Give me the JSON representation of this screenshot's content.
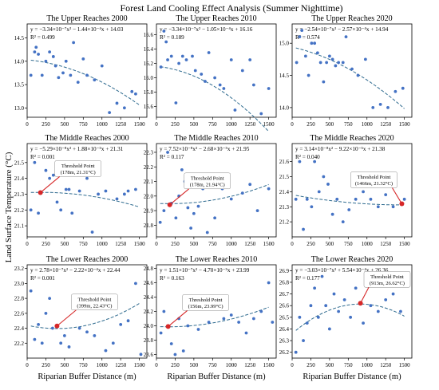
{
  "figure": {
    "title": "Forest Land Cooling Effect Analysis (Summer Nighttime)",
    "ylabel": "Land Surface Temperature (°C)",
    "xlabel": "Riparian Buffer Distance (m)"
  },
  "colors": {
    "point": "#4472c4",
    "trend": "#2f6b8f",
    "threshold_marker": "#d62728",
    "axis": "#000000"
  },
  "chart_data": [
    {
      "type": "scatter",
      "title": "The Upper Reaches 2000",
      "equation": "y = −3.34×10⁻⁷x² − 1.44×10⁻⁴x + 14.03",
      "r2_label": "R² = 0.499",
      "xlim": [
        0,
        1600
      ],
      "ylim": [
        12.8,
        14.8
      ],
      "xticks": [
        0,
        250,
        500,
        750,
        1000,
        1250,
        1500
      ],
      "yticks": [
        13.0,
        13.5,
        14.0,
        14.5
      ],
      "x": [
        50,
        100,
        120,
        150,
        200,
        250,
        300,
        350,
        380,
        420,
        480,
        520,
        580,
        620,
        680,
        750,
        800,
        900,
        1000,
        1100,
        1200,
        1300,
        1400,
        1450
      ],
      "y": [
        13.7,
        14.2,
        14.3,
        14.15,
        13.7,
        14.0,
        14.2,
        14.1,
        13.9,
        13.65,
        13.75,
        14.0,
        13.7,
        14.4,
        13.55,
        14.05,
        13.7,
        13.6,
        13.9,
        12.9,
        13.1,
        13.0,
        13.35,
        13.3
      ],
      "fit": [
        -3.34e-07,
        -0.000144,
        14.03
      ]
    },
    {
      "type": "scatter",
      "title": "The Upper Reaches 2010",
      "equation": "y = −3.34×10⁻⁷x² − 1.05×10⁻⁴x + 16.16",
      "r2_label": "R² = 0.189",
      "xlim": [
        0,
        1600
      ],
      "ylim": [
        15.45,
        16.75
      ],
      "xticks": [
        0,
        250,
        500,
        750,
        1000,
        1250,
        1500
      ],
      "yticks": [
        15.6,
        15.8,
        16.0,
        16.2,
        16.4,
        16.6
      ],
      "x": [
        60,
        100,
        130,
        150,
        200,
        260,
        300,
        350,
        400,
        480,
        520,
        600,
        650,
        700,
        780,
        850,
        900,
        1000,
        1050,
        1150,
        1250,
        1300,
        1400,
        1500
      ],
      "y": [
        16.15,
        16.65,
        16.5,
        16.25,
        16.3,
        15.65,
        16.2,
        16.3,
        16.25,
        16.3,
        16.1,
        16.05,
        15.95,
        16.35,
        16.0,
        15.9,
        15.85,
        16.25,
        15.55,
        16.1,
        16.25,
        15.9,
        15.5,
        15.85
      ],
      "fit": [
        -3.34e-07,
        -0.000105,
        16.16
      ]
    },
    {
      "type": "scatter",
      "title": "The Upper Reaches 2020",
      "equation": "y = −2.54×10⁻⁷x² − 2.57×10⁻⁴x + 14.94",
      "r2_label": "R² = 0.574",
      "xlim": [
        0,
        1600
      ],
      "ylim": [
        13.85,
        15.3
      ],
      "xticks": [
        0,
        250,
        500,
        750,
        1000,
        1250,
        1500
      ],
      "yticks": [
        14.0,
        14.5,
        15.0
      ],
      "x": [
        60,
        100,
        130,
        180,
        220,
        260,
        300,
        340,
        380,
        420,
        460,
        500,
        540,
        580,
        620,
        680,
        720,
        800,
        880,
        980,
        1080,
        1180,
        1280,
        1380,
        1480
      ],
      "y": [
        14.7,
        15.1,
        15.2,
        14.8,
        14.5,
        15.0,
        15.0,
        14.85,
        14.7,
        14.4,
        14.7,
        14.8,
        14.75,
        14.65,
        14.7,
        14.7,
        15.1,
        14.6,
        14.5,
        14.75,
        14.0,
        14.05,
        14.0,
        14.25,
        14.3
      ],
      "fit": [
        -2.54e-07,
        -0.000257,
        14.94
      ]
    },
    {
      "type": "scatter",
      "title": "The Middle Reaches 2000",
      "equation": "y = −5.29×10⁻⁸x² + 1.88×10⁻⁵x + 21.31",
      "r2_label": "R² = 0.001",
      "xlim": [
        0,
        1600
      ],
      "ylim": [
        21.03,
        21.62
      ],
      "xticks": [
        0,
        250,
        500,
        750,
        1000,
        1250,
        1500
      ],
      "yticks": [
        21.1,
        21.2,
        21.3,
        21.4,
        21.5
      ],
      "x": [
        50,
        100,
        150,
        178,
        250,
        300,
        350,
        400,
        450,
        520,
        560,
        600,
        700,
        800,
        870,
        950,
        1050,
        1200,
        1300,
        1350,
        1450
      ],
      "y": [
        21.2,
        21.5,
        21.18,
        21.31,
        21.45,
        21.4,
        21.42,
        21.25,
        21.2,
        21.33,
        21.33,
        21.18,
        21.32,
        21.4,
        21.06,
        21.3,
        21.32,
        21.27,
        21.3,
        21.32,
        21.33
      ],
      "fit": [
        -5.29e-08,
        1.88e-05,
        21.31
      ],
      "threshold": {
        "x": 178,
        "y": 21.31,
        "label": "Threshold Point",
        "sublabel": "(178m, 21.31°C)"
      }
    },
    {
      "type": "scatter",
      "title": "The Middle Reaches 2010",
      "equation": "y = 7.52×10⁻⁸x² − 2.68×10⁻⁵x + 21.95",
      "r2_label": "R² = 0.117",
      "xlim": [
        0,
        1600
      ],
      "ylim": [
        21.72,
        22.36
      ],
      "xticks": [
        0,
        250,
        500,
        750,
        1000,
        1250,
        1500
      ],
      "yticks": [
        21.8,
        21.9,
        22.0,
        22.1,
        22.2,
        22.3
      ],
      "x": [
        50,
        100,
        150,
        178,
        200,
        260,
        300,
        340,
        380,
        420,
        460,
        500,
        560,
        620,
        680,
        780,
        880,
        1000,
        1150,
        1250,
        1350,
        1500
      ],
      "y": [
        21.82,
        21.9,
        22.3,
        21.94,
        21.95,
        21.85,
        22.0,
        22.18,
        22.1,
        21.92,
        21.78,
        21.88,
        21.93,
        22.05,
        21.75,
        21.85,
        22.05,
        21.98,
        22.02,
        22.08,
        21.9,
        22.05
      ],
      "fit": [
        7.52e-08,
        -2.68e-05,
        21.95
      ],
      "threshold": {
        "x": 178,
        "y": 21.94,
        "label": "Threshold Point",
        "sublabel": "(178m, 21.94°C)"
      }
    },
    {
      "type": "scatter",
      "title": "The Middle Reaches 2020",
      "equation": "y = 3.14×10⁻⁸x² − 9.22×10⁻⁵x + 21.38",
      "r2_label": "R² = 0.040",
      "xlim": [
        0,
        1600
      ],
      "ylim": [
        21.1,
        21.72
      ],
      "xticks": [
        0,
        250,
        500,
        750,
        1000,
        1250,
        1500
      ],
      "yticks": [
        21.2,
        21.3,
        21.4,
        21.5,
        21.6
      ],
      "x": [
        50,
        100,
        150,
        200,
        260,
        300,
        360,
        420,
        480,
        540,
        600,
        680,
        760,
        850,
        950,
        1050,
        1150,
        1250,
        1350,
        1466,
        1500
      ],
      "y": [
        21.35,
        21.6,
        21.15,
        21.35,
        21.3,
        21.6,
        21.4,
        21.5,
        21.45,
        21.25,
        21.35,
        21.2,
        21.28,
        21.35,
        21.4,
        21.35,
        21.3,
        21.38,
        21.3,
        21.32,
        21.35
      ],
      "fit": [
        3.14e-08,
        -9.22e-05,
        21.38
      ],
      "threshold": {
        "x": 1466,
        "y": 21.32,
        "label": "Threshold Point",
        "sublabel": "(1466m, 21.32°C)"
      }
    },
    {
      "type": "scatter",
      "title": "The Lower Reaches 2000",
      "equation": "y = 2.78×10⁻⁷x² − 2.22×10⁻⁴x + 22.44",
      "r2_label": "R² = 0.001",
      "xlim": [
        0,
        1600
      ],
      "ylim": [
        22.0,
        23.25
      ],
      "xticks": [
        0,
        250,
        500,
        750,
        1000,
        1250,
        1500
      ],
      "yticks": [
        22.2,
        22.4,
        22.6,
        22.8,
        23.0,
        23.2
      ],
      "x": [
        50,
        100,
        150,
        200,
        250,
        300,
        340,
        399,
        450,
        500,
        560,
        620,
        700,
        800,
        900,
        1050,
        1150,
        1250,
        1350,
        1450,
        1520
      ],
      "y": [
        22.9,
        22.25,
        22.45,
        22.2,
        22.6,
        22.8,
        22.4,
        22.43,
        22.2,
        22.3,
        22.15,
        22.8,
        22.4,
        22.35,
        22.3,
        22.1,
        22.2,
        22.45,
        22.5,
        23.0,
        22.05
      ],
      "fit": [
        2.78e-07,
        -0.000222,
        22.44
      ],
      "threshold": {
        "x": 399,
        "y": 22.43,
        "label": "Threshold Point",
        "sublabel": "(399m, 22.43°C)"
      }
    },
    {
      "type": "scatter",
      "title": "The Lower Reaches 2010",
      "equation": "y = 1.51×10⁻⁷x² − 4.70×10⁻⁵x + 23.99",
      "r2_label": "R² = 0.163",
      "xlim": [
        0,
        1600
      ],
      "ylim": [
        23.55,
        24.85
      ],
      "xticks": [
        0,
        250,
        500,
        750,
        1000,
        1250,
        1500
      ],
      "yticks": [
        23.6,
        23.8,
        24.0,
        24.2,
        24.4,
        24.6,
        24.8
      ],
      "x": [
        60,
        100,
        156,
        200,
        250,
        300,
        360,
        420,
        500,
        560,
        620,
        700,
        800,
        900,
        1000,
        1100,
        1200,
        1300,
        1400,
        1500,
        1550
      ],
      "y": [
        23.9,
        24.2,
        23.99,
        23.75,
        23.6,
        24.1,
        23.65,
        24.0,
        24.25,
        23.95,
        24.35,
        24.05,
        24.3,
        24.1,
        24.15,
        24.05,
        23.9,
        24.1,
        24.2,
        24.6,
        24.05
      ],
      "fit": [
        1.51e-07,
        -4.7e-05,
        23.99
      ],
      "threshold": {
        "x": 156,
        "y": 23.99,
        "label": "Threshold Point",
        "sublabel": "(156m, 23.99°C)"
      }
    },
    {
      "type": "scatter",
      "title": "The Lower Reaches 2020",
      "equation": "y = −3.03×10⁻⁷x² + 5.54×10⁻⁴x + 26.36",
      "r2_label": "R² = 0.177",
      "xlim": [
        0,
        1600
      ],
      "ylim": [
        26.15,
        26.95
      ],
      "xticks": [
        0,
        250,
        500,
        750,
        1000,
        1250,
        1500
      ],
      "yticks": [
        26.2,
        26.3,
        26.4,
        26.5,
        26.6,
        26.7,
        26.8,
        26.9
      ],
      "x": [
        50,
        100,
        150,
        200,
        250,
        300,
        350,
        400,
        450,
        500,
        560,
        620,
        700,
        780,
        850,
        913,
        950,
        1050,
        1150,
        1250,
        1350,
        1450
      ],
      "y": [
        26.2,
        26.5,
        26.3,
        26.45,
        26.6,
        26.75,
        26.5,
        26.85,
        26.6,
        26.4,
        26.7,
        26.55,
        26.65,
        26.5,
        26.75,
        26.62,
        26.45,
        26.6,
        26.55,
        26.65,
        26.7,
        26.55
      ],
      "fit": [
        -3.03e-07,
        0.000554,
        26.36
      ],
      "threshold": {
        "x": 913,
        "y": 26.62,
        "label": "Threshold Point",
        "sublabel": "(913m, 26.62°C)"
      }
    }
  ]
}
